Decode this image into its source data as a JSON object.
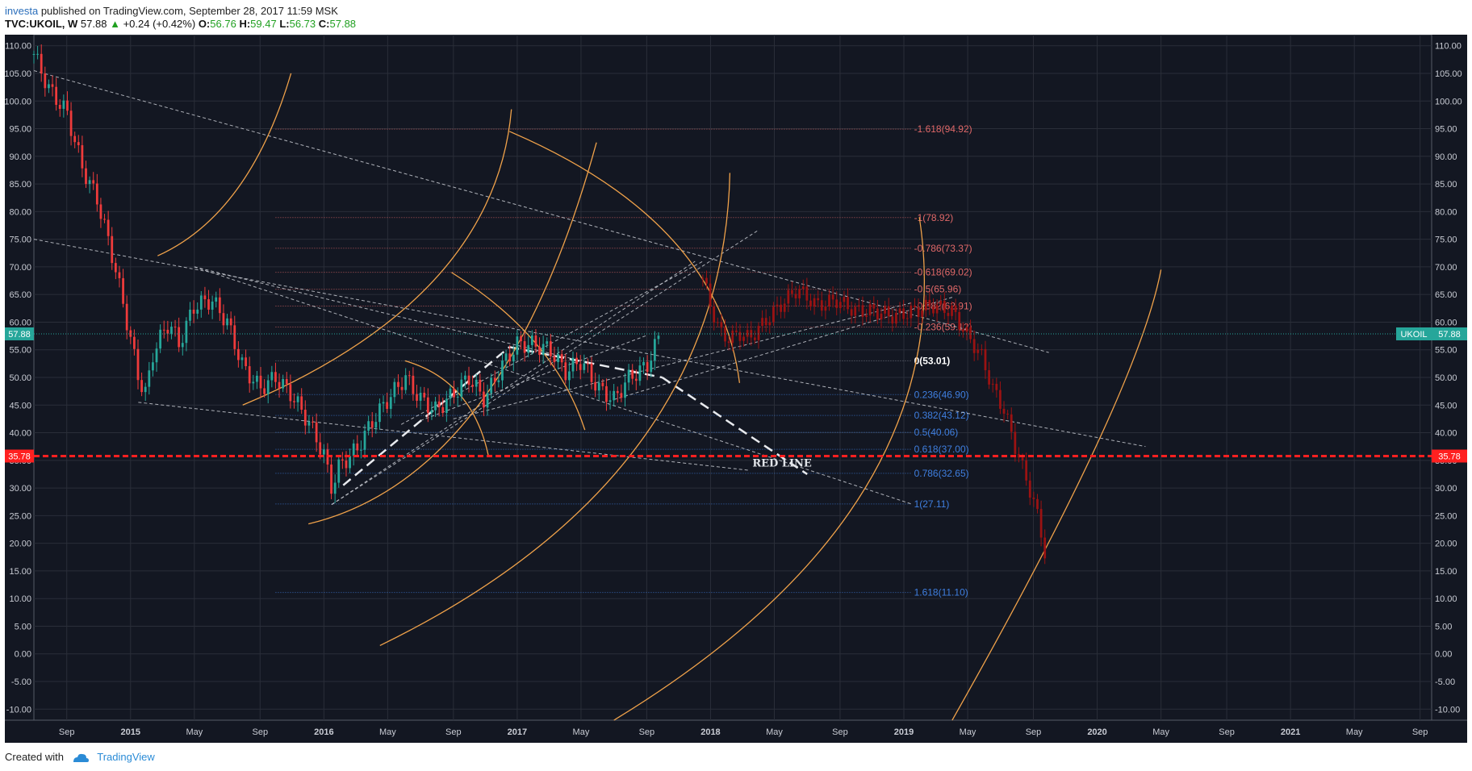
{
  "header": {
    "author": "investa",
    "published_text": " published on TradingView.com, September 28, 2017 11:59 MSK"
  },
  "ticker": {
    "symbol": "TVC:UKOIL, W",
    "last": "57.88",
    "arrow": "▲",
    "change": "+0.24 (+0.42%)",
    "o_label": "O:",
    "o": "56.76",
    "h_label": "H:",
    "h": "59.47",
    "l_label": "L:",
    "l": "56.73",
    "c_label": "C:",
    "c": "57.88"
  },
  "footer": {
    "created_with": "Created with",
    "brand": "TradingView"
  },
  "colors": {
    "background": "#131722",
    "grid": "#2a2e39",
    "up": "#26a69a",
    "down": "#ef3b3b",
    "projection": "#9b1212",
    "red_line": "#ff2020",
    "fib_up": "#e06868",
    "fib_down": "#3f7fe0",
    "arc": "#f0a24a",
    "price_tag": "#26a69a",
    "redline_tag": "#ff2020"
  },
  "chart_data": {
    "type": "candlestick",
    "y_ticks": [
      "110.00",
      "105.00",
      "100.00",
      "95.00",
      "90.00",
      "85.00",
      "80.00",
      "75.00",
      "70.00",
      "65.00",
      "60.00",
      "55.00",
      "50.00",
      "45.00",
      "40.00",
      "35.00",
      "30.00",
      "25.00",
      "20.00",
      "15.00",
      "10.00",
      "5.00",
      "0.00",
      "-5.00",
      "-10.00"
    ],
    "ylim": [
      -12,
      112
    ],
    "x_ticks": [
      {
        "label": "Sep",
        "t": 2014.67,
        "bold": false
      },
      {
        "label": "2015",
        "t": 2015.0,
        "bold": true
      },
      {
        "label": "May",
        "t": 2015.33,
        "bold": false
      },
      {
        "label": "Sep",
        "t": 2015.67,
        "bold": false
      },
      {
        "label": "2016",
        "t": 2016.0,
        "bold": true
      },
      {
        "label": "May",
        "t": 2016.33,
        "bold": false
      },
      {
        "label": "Sep",
        "t": 2016.67,
        "bold": false
      },
      {
        "label": "2017",
        "t": 2017.0,
        "bold": true
      },
      {
        "label": "May",
        "t": 2017.33,
        "bold": false
      },
      {
        "label": "Sep",
        "t": 2017.67,
        "bold": false
      },
      {
        "label": "2018",
        "t": 2018.0,
        "bold": true
      },
      {
        "label": "May",
        "t": 2018.33,
        "bold": false
      },
      {
        "label": "Sep",
        "t": 2018.67,
        "bold": false
      },
      {
        "label": "2019",
        "t": 2019.0,
        "bold": true
      },
      {
        "label": "May",
        "t": 2019.33,
        "bold": false
      },
      {
        "label": "Sep",
        "t": 2019.67,
        "bold": false
      },
      {
        "label": "2020",
        "t": 2020.0,
        "bold": true
      },
      {
        "label": "May",
        "t": 2020.33,
        "bold": false
      },
      {
        "label": "Sep",
        "t": 2020.67,
        "bold": false
      },
      {
        "label": "2021",
        "t": 2021.0,
        "bold": true
      },
      {
        "label": "May",
        "t": 2021.33,
        "bold": false
      },
      {
        "label": "Sep",
        "t": 2021.67,
        "bold": false
      }
    ],
    "xlim": [
      2014.5,
      2021.73
    ],
    "price_path": [
      [
        2014.5,
        108.5
      ],
      [
        2014.58,
        102
      ],
      [
        2014.67,
        98
      ],
      [
        2014.75,
        88
      ],
      [
        2014.83,
        82
      ],
      [
        2014.92,
        70
      ],
      [
        2015.0,
        57
      ],
      [
        2015.04,
        50
      ],
      [
        2015.08,
        47
      ],
      [
        2015.12,
        55
      ],
      [
        2015.2,
        60
      ],
      [
        2015.25,
        56
      ],
      [
        2015.33,
        63
      ],
      [
        2015.42,
        64
      ],
      [
        2015.5,
        60
      ],
      [
        2015.58,
        52
      ],
      [
        2015.67,
        48
      ],
      [
        2015.75,
        50
      ],
      [
        2015.83,
        47
      ],
      [
        2015.92,
        42
      ],
      [
        2016.0,
        36
      ],
      [
        2016.04,
        30
      ],
      [
        2016.08,
        34
      ],
      [
        2016.17,
        37
      ],
      [
        2016.25,
        42
      ],
      [
        2016.33,
        46
      ],
      [
        2016.42,
        50
      ],
      [
        2016.5,
        46
      ],
      [
        2016.58,
        44
      ],
      [
        2016.67,
        47
      ],
      [
        2016.75,
        50
      ],
      [
        2016.83,
        46
      ],
      [
        2016.92,
        52
      ],
      [
        2017.0,
        56
      ],
      [
        2017.08,
        56
      ],
      [
        2017.17,
        55
      ],
      [
        2017.25,
        51
      ],
      [
        2017.33,
        53
      ],
      [
        2017.42,
        48
      ],
      [
        2017.5,
        46
      ],
      [
        2017.58,
        50
      ],
      [
        2017.67,
        52
      ],
      [
        2017.74,
        57.88
      ]
    ],
    "projection_path": [
      [
        2017.96,
        68
      ],
      [
        2018.0,
        63
      ],
      [
        2018.05,
        58
      ],
      [
        2018.1,
        57
      ],
      [
        2018.15,
        58
      ],
      [
        2018.2,
        57
      ],
      [
        2018.28,
        60
      ],
      [
        2018.36,
        63
      ],
      [
        2018.45,
        66
      ],
      [
        2018.55,
        63
      ],
      [
        2018.65,
        64
      ],
      [
        2018.75,
        62
      ],
      [
        2018.85,
        62
      ],
      [
        2018.95,
        61
      ],
      [
        2019.05,
        62
      ],
      [
        2019.15,
        63
      ],
      [
        2019.25,
        62
      ],
      [
        2019.32,
        58
      ],
      [
        2019.4,
        54
      ],
      [
        2019.46,
        48
      ],
      [
        2019.52,
        44
      ],
      [
        2019.58,
        37
      ],
      [
        2019.64,
        31
      ],
      [
        2019.7,
        24
      ],
      [
        2019.74,
        16
      ]
    ],
    "fib_levels": [
      {
        "label": "-1.618(94.92)",
        "value": 94.92,
        "side": "up"
      },
      {
        "label": "-1(78.92)",
        "value": 78.92,
        "side": "up"
      },
      {
        "label": "-0.786(73.37)",
        "value": 73.37,
        "side": "up"
      },
      {
        "label": "-0.618(69.02)",
        "value": 69.02,
        "side": "up"
      },
      {
        "label": "-0.5(65.96)",
        "value": 65.96,
        "side": "up"
      },
      {
        "label": "-0.382(62.91)",
        "value": 62.91,
        "side": "up"
      },
      {
        "label": "-0.236(59.12)",
        "value": 59.12,
        "side": "up"
      },
      {
        "label": "0(53.01)",
        "value": 53.01,
        "side": "zero"
      },
      {
        "label": "0.236(46.90)",
        "value": 46.9,
        "side": "down"
      },
      {
        "label": "0.382(43.12)",
        "value": 43.12,
        "side": "down"
      },
      {
        "label": "0.5(40.06)",
        "value": 40.06,
        "side": "down"
      },
      {
        "label": "0.618(37.00)",
        "value": 37.0,
        "side": "down"
      },
      {
        "label": "0.786(32.65)",
        "value": 32.65,
        "side": "down"
      },
      {
        "label": "1(27.11)",
        "value": 27.11,
        "side": "down"
      },
      {
        "label": "1.618(11.10)",
        "value": 11.1,
        "side": "down"
      }
    ],
    "fib_x_range": [
      2015.75,
      2019.04
    ],
    "red_line": {
      "value": 35.78,
      "tag": "35.78",
      "label": "RED LINE"
    },
    "last_price": {
      "value": 57.88,
      "tag": "57.88",
      "symbol_tag": "UKOIL"
    },
    "trend_lines": [
      {
        "p1": [
          2014.5,
          105.5
        ],
        "p2": [
          2019.75,
          54.5
        ]
      },
      {
        "p1": [
          2014.5,
          75
        ],
        "p2": [
          2020.25,
          37.5
        ]
      },
      {
        "p1": [
          2015.33,
          70
        ],
        "p2": [
          2017.33,
          53
        ]
      },
      {
        "p1": [
          2015.33,
          70
        ],
        "p2": [
          2019.04,
          27.1
        ]
      },
      {
        "p1": [
          2015.04,
          45.5
        ],
        "p2": [
          2018.2,
          33.2
        ]
      },
      {
        "p1": [
          2016.04,
          27
        ],
        "p2": [
          2018.25,
          76.7
        ]
      },
      {
        "p1": [
          2016.04,
          27
        ],
        "p2": [
          2017.92,
          71
        ]
      },
      {
        "p1": [
          2016.4,
          41.5
        ],
        "p2": [
          2017.96,
          71
        ]
      },
      {
        "p1": [
          2016.67,
          42.5
        ],
        "p2": [
          2019.04,
          63.5
        ]
      },
      {
        "p1": [
          2016.5,
          42.2
        ],
        "p2": [
          2017.67,
          57.6
        ]
      },
      {
        "p1": [
          2017.5,
          46
        ],
        "p2": [
          2019.25,
          64.5
        ]
      }
    ],
    "dash_lines": [
      {
        "p1": [
          2016.1,
          30.5
        ],
        "p2": [
          2016.96,
          55.5
        ]
      },
      {
        "p1": [
          2016.96,
          55.5
        ],
        "p2": [
          2017.75,
          50
        ]
      },
      {
        "p1": [
          2017.75,
          50
        ],
        "p2": [
          2018.5,
          32.5
        ]
      }
    ],
    "arcs": [
      {
        "p": [
          [
            2015.14,
            72
          ],
          [
            2015.55,
            84
          ],
          [
            2015.83,
            105
          ]
        ]
      },
      {
        "p": [
          [
            2015.58,
            45
          ],
          [
            2016.58,
            68
          ],
          [
            2016.97,
            98.5
          ]
        ]
      },
      {
        "p": [
          [
            2015.92,
            23.5
          ],
          [
            2016.8,
            45
          ],
          [
            2017.41,
            92.5
          ]
        ]
      },
      {
        "p": [
          [
            2016.29,
            1.5
          ],
          [
            2017.63,
            38
          ],
          [
            2018.1,
            87
          ]
        ]
      },
      {
        "p": [
          [
            2016.96,
            94.5
          ],
          [
            2017.8,
            75
          ],
          [
            2018.15,
            49
          ]
        ]
      },
      {
        "p": [
          [
            2016.66,
            69
          ],
          [
            2017.1,
            56
          ],
          [
            2017.35,
            40.5
          ]
        ]
      },
      {
        "p": [
          [
            2016.42,
            53
          ],
          [
            2016.7,
            47
          ],
          [
            2016.85,
            36
          ]
        ]
      },
      {
        "p": [
          [
            2017.5,
            -12
          ],
          [
            2018.8,
            30
          ],
          [
            2019.08,
            79
          ]
        ]
      },
      {
        "p": [
          [
            2019.25,
            -12
          ],
          [
            2020.0,
            38
          ],
          [
            2020.33,
            69.5
          ]
        ]
      }
    ]
  }
}
